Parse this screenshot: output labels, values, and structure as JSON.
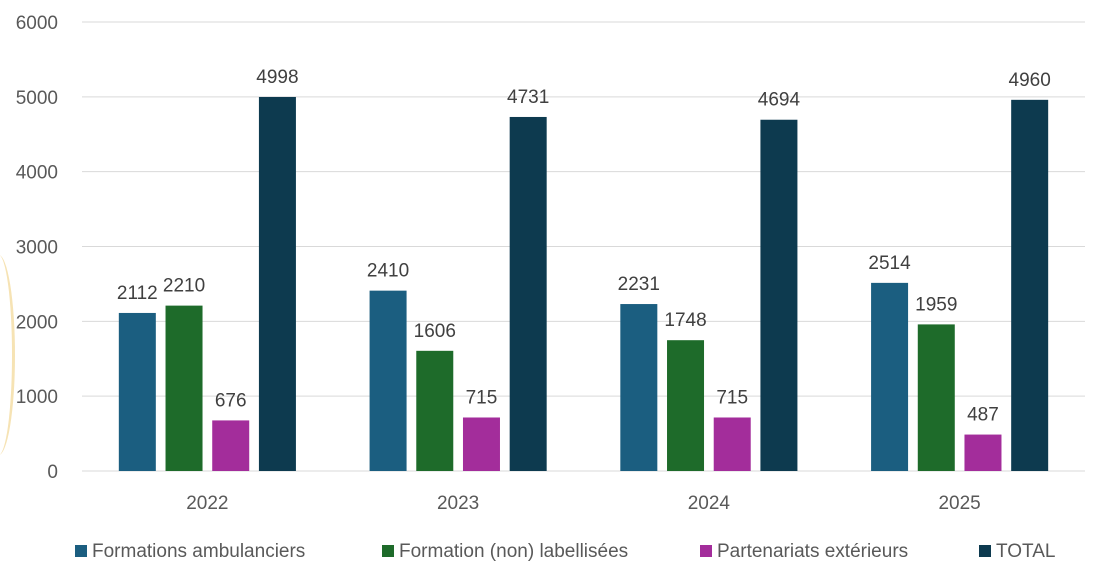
{
  "chart_data": {
    "type": "bar",
    "title": "",
    "xlabel": "",
    "ylabel": "",
    "categories": [
      "2022",
      "2023",
      "2024",
      "2025"
    ],
    "series": [
      {
        "name": "Formations ambulanciers",
        "color": "#1b5e80",
        "values": [
          2112,
          2410,
          2231,
          2514
        ]
      },
      {
        "name": "Formation (non) labellisées",
        "color": "#1e6b2a",
        "values": [
          2210,
          1606,
          1748,
          1959
        ]
      },
      {
        "name": "Partenariats extérieurs",
        "color": "#a32d9b",
        "values": [
          676,
          715,
          715,
          487
        ]
      },
      {
        "name": "TOTAL",
        "color": "#0d3a4f",
        "values": [
          4998,
          4731,
          4694,
          4960
        ]
      }
    ],
    "ylim": [
      0,
      6000
    ],
    "yticks": [
      0,
      1000,
      2000,
      3000,
      4000,
      5000,
      6000
    ],
    "grid": true,
    "legend_position": "bottom",
    "data_labels": true
  }
}
